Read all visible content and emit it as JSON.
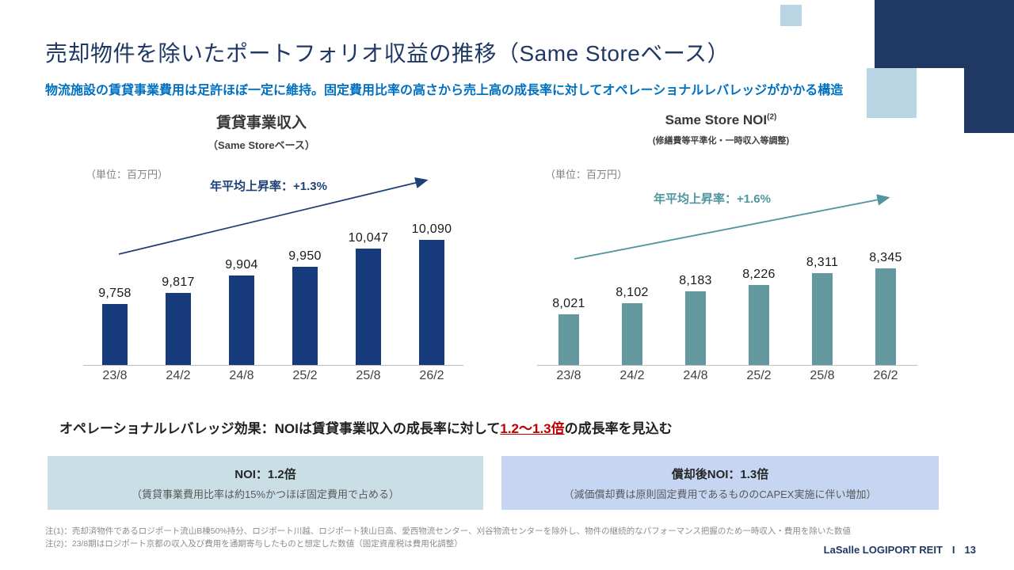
{
  "page": {
    "title": "売却物件を除いたポートフォリオ収益の推移（Same Storeベース）",
    "subtitle": "物流施設の賃貸事業費用は足許ほぼ一定に維持。固定費用比率の高さから売上高の成長率に対してオペレーショナルレバレッジがかかる構造"
  },
  "colors": {
    "navy": "#1f3864",
    "accent_blue": "#0070c0",
    "decor_light_blue": "#b9d5e3"
  },
  "chart_data": [
    {
      "type": "bar",
      "title": "賃貸事業収入",
      "subtitle": "（Same Storeベース）",
      "unit_label": "（単位：百万円）",
      "growth_label": "年平均上昇率：+1.3%",
      "categories": [
        "23/8",
        "24/2",
        "24/8",
        "25/2",
        "25/8",
        "26/2"
      ],
      "values": [
        9758,
        9817,
        9904,
        9950,
        10047,
        10090
      ],
      "value_labels": [
        "9,758",
        "9,817",
        "9,904",
        "9,950",
        "10,047",
        "10,090"
      ],
      "bar_color": "#173a7c",
      "arrow_color": "#1f4276",
      "legend": "none",
      "grid": false
    },
    {
      "type": "bar",
      "title": "Same Store NOI",
      "title_superscript": "(2)",
      "subtitle": "(修繕費等平準化・一時収入等調整)",
      "unit_label": "（単位：百万円）",
      "growth_label": "年平均上昇率：+1.6%",
      "categories": [
        "23/8",
        "24/2",
        "24/8",
        "25/2",
        "25/8",
        "26/2"
      ],
      "values": [
        8021,
        8102,
        8183,
        8226,
        8311,
        8345
      ],
      "value_labels": [
        "8,021",
        "8,102",
        "8,183",
        "8,226",
        "8,311",
        "8,345"
      ],
      "bar_color": "#63989f",
      "arrow_color": "#4f96a0",
      "legend": "none",
      "grid": false
    }
  ],
  "leverage": {
    "prefix": "オペレーショナルレバレッジ効果：NOIは賃貸事業収入の成長率に対して",
    "highlight": "1.2〜1.3倍",
    "suffix": "の成長率を見込む",
    "highlight_color": "#c00000"
  },
  "boxes": [
    {
      "title": "NOI：1.2倍",
      "note": "（賃貸事業費用比率は約15%かつほぼ固定費用で占める）",
      "bg": "#cadee6"
    },
    {
      "title": "償却後NOI：1.3倍",
      "note": "（減価償却費は原則固定費用であるもののCAPEX実施に伴い増加）",
      "bg": "#c6d6f2"
    }
  ],
  "footnotes": [
    "注(1)：売却済物件であるロジポート流山B棟50%持分、ロジポート川越、ロジポート狭山日高、愛西物流センター、刈谷物流センターを除外し、物件の継続的なパフォーマンス把握のため一時収入・費用を除いた数値",
    "注(2)：23/8期はロジポート京都の収入及び費用を通期寄与したものと想定した数値（固定資産税は費用化調整）"
  ],
  "footer": {
    "brand": "LaSalle LOGIPORT REIT",
    "separator": "I",
    "page": "13"
  }
}
